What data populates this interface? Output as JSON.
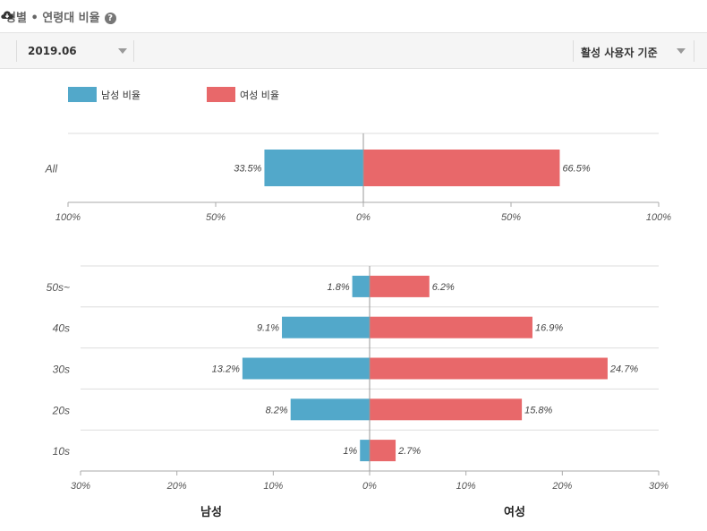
{
  "header": {
    "title": "성별 • 연령대 비율",
    "help_icon": "question-circle-icon",
    "download_icon": "cloud-download-icon"
  },
  "filters": {
    "date_value": "2019.06",
    "user_basis_value": "활성 사용자 기준"
  },
  "legend": {
    "male_label": "남성 비율",
    "female_label": "여성 비율"
  },
  "colors": {
    "male": "#52a8ca",
    "female": "#e8686a"
  },
  "chart_data": [
    {
      "type": "bar",
      "orientation": "horizontal-diverging",
      "categories": [
        "All"
      ],
      "series": [
        {
          "name": "남성 비율",
          "values": [
            33.5
          ],
          "labels": [
            "33.5%"
          ]
        },
        {
          "name": "여성 비율",
          "values": [
            66.5
          ],
          "labels": [
            "66.5%"
          ]
        }
      ],
      "xlim": [
        -100,
        100
      ],
      "x_ticks": [
        -100,
        -50,
        0,
        50,
        100
      ],
      "x_tick_labels": [
        "100%",
        "50%",
        "0%",
        "50%",
        "100%"
      ],
      "legend_position": "top-left",
      "grid": true
    },
    {
      "type": "bar",
      "orientation": "horizontal-diverging",
      "categories": [
        "50s~",
        "40s",
        "30s",
        "20s",
        "10s"
      ],
      "series": [
        {
          "name": "남성 비율",
          "values": [
            1.8,
            9.1,
            13.2,
            8.2,
            1
          ],
          "labels": [
            "1.8%",
            "9.1%",
            "13.2%",
            "8.2%",
            "1%"
          ]
        },
        {
          "name": "여성 비율",
          "values": [
            6.2,
            16.9,
            24.7,
            15.8,
            2.7
          ],
          "labels": [
            "6.2%",
            "16.9%",
            "24.7%",
            "15.8%",
            "2.7%"
          ]
        }
      ],
      "xlim": [
        -30,
        30
      ],
      "x_ticks": [
        -30,
        -20,
        -10,
        0,
        10,
        20,
        30
      ],
      "x_tick_labels": [
        "30%",
        "20%",
        "10%",
        "0%",
        "10%",
        "20%",
        "30%"
      ],
      "xlabel_left": "남성",
      "xlabel_right": "여성",
      "grid": true
    }
  ]
}
